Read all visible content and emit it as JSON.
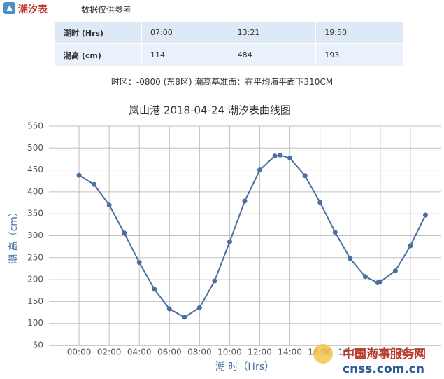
{
  "header": {
    "title": "潮汐表",
    "subtitle": "数据仅供参考"
  },
  "table": {
    "rows": [
      [
        "潮时 (Hrs)",
        "07:00",
        "13:21",
        "19:50"
      ],
      [
        "潮高 (cm)",
        "114",
        "484",
        "193"
      ]
    ]
  },
  "note": "时区：-0800 (东8区) 潮高基准面：在平均海平面下310CM",
  "watermark": {
    "name": "中国海事服务网",
    "url": "cnss.com.cn"
  },
  "chart_data": {
    "type": "line",
    "title": "岚山港 2018-04-24 潮汐表曲线图",
    "x_label": "潮 时（Hrs）",
    "y_label": "潮 高（cm）",
    "x": [
      0,
      1,
      2,
      3,
      4,
      5,
      6,
      7,
      8,
      9,
      10,
      11,
      12,
      13,
      13.35,
      14,
      15,
      16,
      17,
      18,
      19,
      19.8333,
      20,
      21,
      22,
      23
    ],
    "series": [
      {
        "name": "潮高",
        "color": "#4a6fa0",
        "values": [
          438,
          417,
          370,
          306,
          239,
          178,
          133,
          114,
          136,
          197,
          286,
          379,
          450,
          482,
          484,
          477,
          437,
          376,
          308,
          248,
          207,
          193,
          195,
          220,
          277,
          347
        ]
      }
    ],
    "xlim": [
      -2,
      24
    ],
    "xticks": [
      {
        "value": 0,
        "label": "00:00"
      },
      {
        "value": 2,
        "label": "02:00"
      },
      {
        "value": 4,
        "label": "04:00"
      },
      {
        "value": 6,
        "label": "06:00"
      },
      {
        "value": 8,
        "label": "08:00"
      },
      {
        "value": 10,
        "label": "10:00"
      },
      {
        "value": 12,
        "label": "12:00"
      },
      {
        "value": 14,
        "label": "14:00"
      },
      {
        "value": 16,
        "label": "16:00"
      },
      {
        "value": 18,
        "label": "18:00"
      },
      {
        "value": 20,
        "label": "20:00"
      },
      {
        "value": 22,
        "label": "22:00"
      }
    ],
    "ylim": [
      50,
      550
    ],
    "yticks": [
      50,
      100,
      150,
      200,
      250,
      300,
      350,
      400,
      450,
      500,
      550
    ],
    "grid": true
  }
}
